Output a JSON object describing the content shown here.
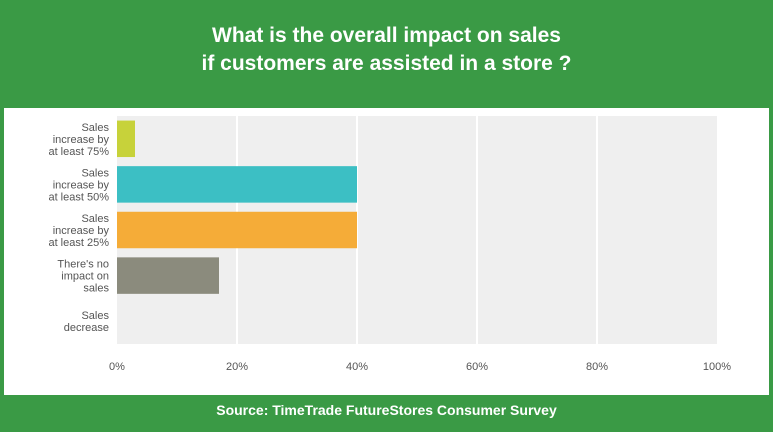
{
  "header": {
    "title_line1": "What is the overall impact on sales",
    "title_line2": "if customers are assisted in a store ?"
  },
  "footer": {
    "source": "Source: TimeTrade FutureStores Consumer Survey"
  },
  "colors": {
    "background": "#3a9a45",
    "plot_area": "#efefef",
    "gridline": "#ffffff",
    "text": "#555555"
  },
  "chart_data": {
    "type": "bar",
    "orientation": "horizontal",
    "categories": [
      [
        "Sales",
        "increase by",
        "at least 75%"
      ],
      [
        "Sales",
        "increase by",
        "at least 50%"
      ],
      [
        "Sales",
        "increase by",
        "at least 25%"
      ],
      [
        "There's no",
        "impact on",
        "sales"
      ],
      [
        "Sales",
        "decrease"
      ]
    ],
    "values": [
      3,
      40,
      40,
      17,
      0
    ],
    "colors": [
      "#c7d23a",
      "#3cbfc4",
      "#f5ac38",
      "#8b8b7d",
      "#cccccc"
    ],
    "xlim": [
      0,
      100
    ],
    "xticks": [
      "0%",
      "20%",
      "40%",
      "60%",
      "80%",
      "100%"
    ],
    "grid": true
  }
}
